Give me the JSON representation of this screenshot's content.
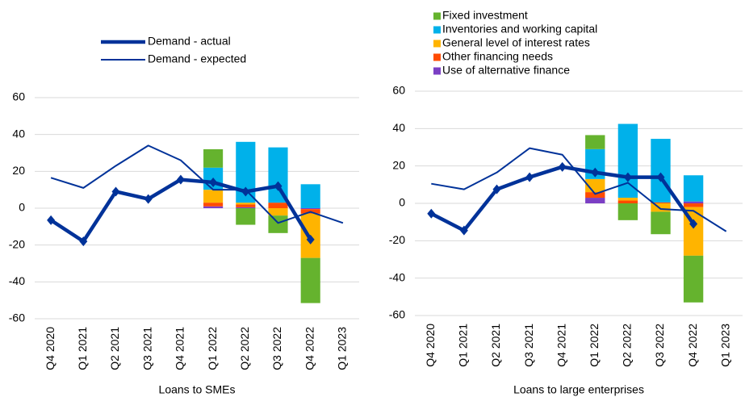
{
  "chart_data": [
    {
      "type": "combo",
      "x_label": "Loans to SMEs",
      "categories": [
        "Q4 2020",
        "Q1 2021",
        "Q2 2021",
        "Q3 2021",
        "Q4 2021",
        "Q1 2022",
        "Q2 2022",
        "Q3 2022",
        "Q4 2022",
        "Q1 2023"
      ],
      "ylim": [
        -60,
        60
      ],
      "yticks": [
        -60,
        -40,
        -20,
        0,
        20,
        40,
        60
      ],
      "grid": true,
      "series": [
        {
          "kind": "bar",
          "color": "#65b32e",
          "values": [
            null,
            null,
            null,
            null,
            null,
            10,
            -9,
            -9.5,
            -24.5,
            null
          ]
        },
        {
          "kind": "bar",
          "color": "#00b1ea",
          "values": [
            null,
            null,
            null,
            null,
            null,
            12,
            33,
            30,
            13,
            null
          ]
        },
        {
          "kind": "bar",
          "color": "#ffb400",
          "values": [
            null,
            null,
            null,
            null,
            null,
            7,
            1,
            -4,
            -24,
            null
          ]
        },
        {
          "kind": "bar",
          "color": "#ff4b00",
          "values": [
            null,
            null,
            null,
            null,
            null,
            2,
            1.5,
            3,
            -2.5,
            null
          ]
        },
        {
          "kind": "bar",
          "color": "#7b3fc4",
          "values": [
            null,
            null,
            null,
            null,
            null,
            1,
            0.5,
            0,
            -0.5,
            null
          ]
        },
        {
          "kind": "line",
          "name": "Demand - actual",
          "color": "#003299",
          "marker": "diamond",
          "values": [
            -6.5,
            -18,
            9,
            5,
            15.5,
            14,
            9,
            12,
            -17,
            null
          ]
        },
        {
          "kind": "line",
          "name": "Demand - expected",
          "color": "#003299",
          "values": [
            16.5,
            11,
            23,
            34,
            26,
            10,
            10,
            -8,
            -2,
            -8
          ]
        }
      ]
    },
    {
      "type": "combo",
      "x_label": "Loans to large enterprises",
      "categories": [
        "Q4 2020",
        "Q1 2021",
        "Q2 2021",
        "Q3 2021",
        "Q4 2021",
        "Q1 2022",
        "Q2 2022",
        "Q3 2022",
        "Q4 2022",
        "Q1 2023"
      ],
      "ylim": [
        -60,
        60
      ],
      "yticks": [
        -60,
        -40,
        -20,
        0,
        20,
        40,
        60
      ],
      "grid": true,
      "series": [
        {
          "kind": "bar",
          "name": "Fixed investment",
          "color": "#65b32e",
          "values": [
            null,
            null,
            null,
            null,
            null,
            7.5,
            -9,
            -12,
            -25,
            null
          ]
        },
        {
          "kind": "bar",
          "name": "Inventories and working capital",
          "color": "#00b1ea",
          "values": [
            null,
            null,
            null,
            null,
            null,
            16,
            39.5,
            34,
            14,
            null
          ]
        },
        {
          "kind": "bar",
          "name": "General level of interest rates",
          "color": "#ffb400",
          "values": [
            null,
            null,
            null,
            null,
            null,
            7,
            1.5,
            -4.5,
            -26,
            null
          ]
        },
        {
          "kind": "bar",
          "name": "Other financing needs",
          "color": "#ff4b00",
          "values": [
            null,
            null,
            null,
            null,
            null,
            3,
            1.5,
            0.5,
            -2,
            null
          ]
        },
        {
          "kind": "bar",
          "name": "Use of alternative finance",
          "color": "#7b3fc4",
          "values": [
            null,
            null,
            null,
            null,
            null,
            3,
            0,
            0,
            1,
            null
          ]
        },
        {
          "kind": "line",
          "color": "#003299",
          "marker": "diamond",
          "values": [
            -5.5,
            -14.5,
            7.5,
            14,
            19.5,
            16.5,
            14,
            14,
            -11,
            null
          ]
        },
        {
          "kind": "line",
          "color": "#003299",
          "values": [
            10.5,
            7.5,
            16.5,
            29.5,
            26,
            5,
            11,
            -3,
            -4,
            -15
          ]
        }
      ]
    }
  ]
}
